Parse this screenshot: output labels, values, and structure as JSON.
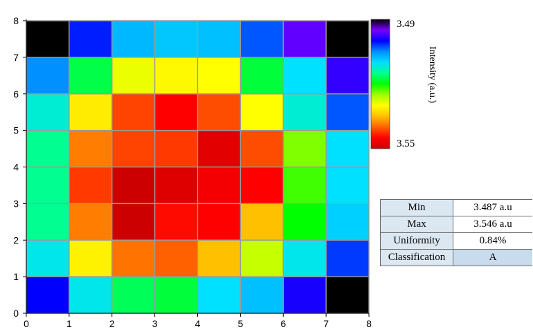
{
  "chart_data": {
    "type": "heatmap",
    "title": "",
    "xlabel": "",
    "ylabel": "",
    "xlim": [
      0,
      8
    ],
    "ylim": [
      0,
      8
    ],
    "x_ticks": [
      "0",
      "1",
      "2",
      "3",
      "4",
      "5",
      "6",
      "7",
      "8"
    ],
    "y_ticks": [
      "0",
      "1",
      "2",
      "3",
      "4",
      "5",
      "6",
      "7",
      "8"
    ],
    "grid": true,
    "colorscale": {
      "title": "Intensity (a.u.)",
      "top_label": "3.49",
      "bottom_label": "3.55",
      "min": 3.49,
      "max": 3.55,
      "stops": [
        "#000000",
        "#7a00ff",
        "#0000ff",
        "#0090ff",
        "#00e0ff",
        "#00ff90",
        "#00ff00",
        "#a0ff00",
        "#ffff00",
        "#ffc000",
        "#ff6000",
        "#ff0000",
        "#c80000"
      ]
    },
    "rows_top_to_bottom": [
      [
        3.49,
        3.501,
        3.5075,
        3.5085,
        3.508,
        3.503,
        3.496,
        3.49
      ],
      [
        3.505,
        3.5175,
        3.529,
        3.5305,
        3.53,
        3.518,
        3.51,
        3.498
      ],
      [
        3.512,
        3.5315,
        3.5415,
        3.545,
        3.541,
        3.53,
        3.512,
        3.503
      ],
      [
        3.515,
        3.5385,
        3.5415,
        3.542,
        3.5475,
        3.541,
        3.524,
        3.51
      ],
      [
        3.515,
        3.542,
        3.5495,
        3.548,
        3.546,
        3.545,
        3.522,
        3.51
      ],
      [
        3.515,
        3.5385,
        3.5495,
        3.5445,
        3.545,
        3.535,
        3.52,
        3.509
      ],
      [
        3.511,
        3.531,
        3.539,
        3.54,
        3.535,
        3.527,
        3.511,
        3.502
      ],
      [
        3.5,
        3.511,
        3.517,
        3.518,
        3.51,
        3.508,
        3.499,
        3.488
      ]
    ]
  },
  "stats": [
    {
      "label": "Min",
      "value": "3.487 a.u"
    },
    {
      "label": "Max",
      "value": "3.546 a.u"
    },
    {
      "label": "Uniformity",
      "value": "0.84%"
    },
    {
      "label": "Classification",
      "value": "A"
    }
  ]
}
